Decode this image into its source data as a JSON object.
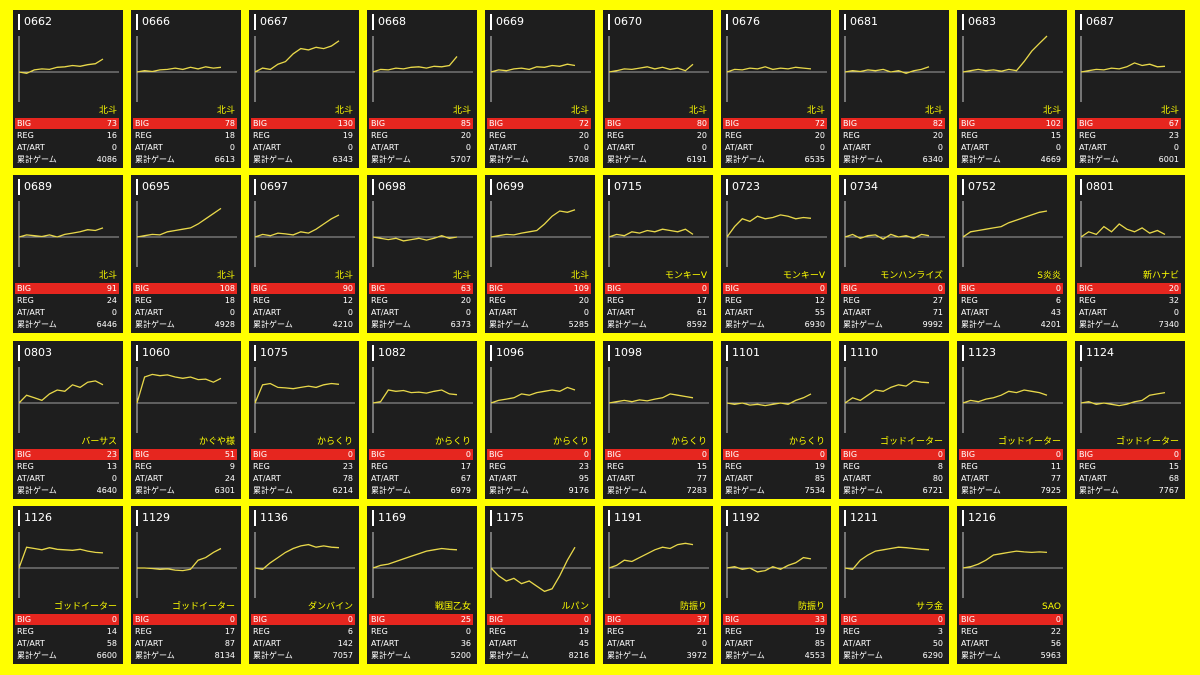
{
  "labels": {
    "big": "BIG",
    "reg": "REG",
    "art": "AT/ART",
    "games": "累計ゲーム"
  },
  "colors": {
    "background": "#ffff00",
    "card": "#1e1e1e",
    "line": "#e8d84a",
    "big_bar": "#e6261f",
    "machine_text": "#ffff00"
  },
  "cards": [
    {
      "num": "0662",
      "machine": "北斗",
      "big": "73",
      "reg": "16",
      "art": "0",
      "games": "4086",
      "trend": [
        0,
        -0.05,
        0.08,
        0.12,
        0.1,
        0.18,
        0.2,
        0.25,
        0.22,
        0.28,
        0.32,
        0.5
      ]
    },
    {
      "num": "0666",
      "machine": "北斗",
      "big": "78",
      "reg": "18",
      "art": "0",
      "games": "6613",
      "trend": [
        0,
        0.05,
        0.02,
        0.08,
        0.1,
        0.15,
        0.1,
        0.18,
        0.12,
        0.2,
        0.15,
        0.18
      ]
    },
    {
      "num": "0667",
      "machine": "北斗",
      "big": "130",
      "reg": "19",
      "art": "0",
      "games": "6343",
      "trend": [
        0,
        0.15,
        0.1,
        0.3,
        0.4,
        0.7,
        0.9,
        0.85,
        0.95,
        0.9,
        1.0,
        1.2
      ]
    },
    {
      "num": "0668",
      "machine": "北斗",
      "big": "85",
      "reg": "20",
      "art": "0",
      "games": "5707",
      "trend": [
        0,
        0.1,
        0.08,
        0.15,
        0.12,
        0.18,
        0.2,
        0.15,
        0.22,
        0.2,
        0.25,
        0.6
      ]
    },
    {
      "num": "0669",
      "machine": "北斗",
      "big": "72",
      "reg": "20",
      "art": "0",
      "games": "5708",
      "trend": [
        0,
        0.08,
        0.05,
        0.12,
        0.15,
        0.1,
        0.2,
        0.18,
        0.25,
        0.22,
        0.3,
        0.25
      ]
    },
    {
      "num": "0670",
      "machine": "北斗",
      "big": "80",
      "reg": "20",
      "art": "0",
      "games": "6191",
      "trend": [
        0,
        0.05,
        0.12,
        0.1,
        0.15,
        0.2,
        0.12,
        0.18,
        0.1,
        0.15,
        0.05,
        0.3
      ]
    },
    {
      "num": "0676",
      "machine": "北斗",
      "big": "72",
      "reg": "20",
      "art": "0",
      "games": "6535",
      "trend": [
        0,
        0.1,
        0.08,
        0.15,
        0.12,
        0.2,
        0.1,
        0.15,
        0.12,
        0.18,
        0.15,
        0.12
      ]
    },
    {
      "num": "0681",
      "machine": "北斗",
      "big": "82",
      "reg": "20",
      "art": "0",
      "games": "6340",
      "trend": [
        0,
        0.05,
        0.02,
        0.08,
        0.05,
        0.1,
        0,
        0.05,
        -0.05,
        0.05,
        0.1,
        0.2
      ]
    },
    {
      "num": "0683",
      "machine": "北斗",
      "big": "102",
      "reg": "15",
      "art": "0",
      "games": "4669",
      "trend": [
        0,
        0.05,
        0.1,
        0.05,
        0.08,
        0.03,
        0.1,
        0.05,
        0.4,
        0.8,
        1.1,
        1.4
      ]
    },
    {
      "num": "0687",
      "machine": "北斗",
      "big": "67",
      "reg": "23",
      "art": "0",
      "games": "6001",
      "trend": [
        0,
        0.05,
        0.1,
        0.08,
        0.15,
        0.12,
        0.2,
        0.35,
        0.25,
        0.3,
        0.2,
        0.22
      ]
    },
    {
      "num": "0689",
      "machine": "北斗",
      "big": "91",
      "reg": "24",
      "art": "0",
      "games": "6446",
      "trend": [
        0,
        0.08,
        0.05,
        0.02,
        0.08,
        0,
        0.1,
        0.15,
        0.2,
        0.28,
        0.25,
        0.35
      ]
    },
    {
      "num": "0695",
      "machine": "北斗",
      "big": "108",
      "reg": "18",
      "art": "0",
      "games": "4928",
      "trend": [
        0,
        0.05,
        0.1,
        0.08,
        0.2,
        0.25,
        0.3,
        0.35,
        0.5,
        0.7,
        0.9,
        1.1
      ]
    },
    {
      "num": "0697",
      "machine": "北斗",
      "big": "90",
      "reg": "12",
      "art": "0",
      "games": "4210",
      "trend": [
        0,
        0.1,
        0.05,
        0.15,
        0.12,
        0.08,
        0.2,
        0.15,
        0.3,
        0.5,
        0.7,
        0.85
      ]
    },
    {
      "num": "0698",
      "machine": "北斗",
      "big": "63",
      "reg": "20",
      "art": "0",
      "games": "6373",
      "trend": [
        0,
        -0.05,
        -0.1,
        -0.05,
        -0.15,
        -0.1,
        -0.05,
        -0.12,
        -0.05,
        0.05,
        -0.05,
        0
      ]
    },
    {
      "num": "0699",
      "machine": "北斗",
      "big": "109",
      "reg": "20",
      "art": "0",
      "games": "5285",
      "trend": [
        0,
        0.05,
        0.1,
        0.08,
        0.15,
        0.2,
        0.25,
        0.5,
        0.8,
        1.0,
        0.95,
        1.05
      ]
    },
    {
      "num": "0715",
      "machine": "モンキーV",
      "big": "0",
      "reg": "17",
      "art": "61",
      "games": "8592",
      "trend": [
        0,
        0.1,
        0.05,
        0.2,
        0.15,
        0.25,
        0.2,
        0.3,
        0.25,
        0.2,
        0.3,
        0.1
      ]
    },
    {
      "num": "0723",
      "machine": "モンキーV",
      "big": "0",
      "reg": "12",
      "art": "55",
      "games": "6930",
      "trend": [
        0,
        0.4,
        0.7,
        0.6,
        0.8,
        0.7,
        0.75,
        0.85,
        0.8,
        0.7,
        0.75,
        0.72
      ]
    },
    {
      "num": "0734",
      "machine": "モンハンライズ",
      "big": "0",
      "reg": "27",
      "art": "71",
      "games": "9992",
      "trend": [
        0,
        0.1,
        -0.05,
        0.05,
        0.08,
        -0.08,
        0.1,
        0,
        0.05,
        -0.05,
        0.1,
        0.05
      ]
    },
    {
      "num": "0752",
      "machine": "S炎炎",
      "big": "0",
      "reg": "6",
      "art": "43",
      "games": "4201",
      "trend": [
        0,
        0.2,
        0.25,
        0.3,
        0.35,
        0.4,
        0.55,
        0.65,
        0.75,
        0.85,
        0.95,
        1.0
      ]
    },
    {
      "num": "0801",
      "machine": "新ハナビ",
      "big": "20",
      "reg": "32",
      "art": "0",
      "games": "7340",
      "trend": [
        0,
        0.2,
        0.1,
        0.4,
        0.2,
        0.5,
        0.3,
        0.2,
        0.35,
        0.15,
        0.25,
        0.1
      ]
    },
    {
      "num": "0803",
      "machine": "バーサス",
      "big": "23",
      "reg": "13",
      "art": "0",
      "games": "4640",
      "trend": [
        0,
        0.3,
        0.2,
        0.1,
        0.35,
        0.5,
        0.45,
        0.7,
        0.6,
        0.8,
        0.85,
        0.7
      ]
    },
    {
      "num": "1060",
      "machine": "かぐや様",
      "big": "51",
      "reg": "9",
      "art": "24",
      "games": "6301",
      "trend": [
        0,
        1.0,
        1.1,
        1.05,
        1.08,
        1.0,
        0.95,
        1.0,
        0.9,
        0.92,
        0.8,
        0.95
      ]
    },
    {
      "num": "1075",
      "machine": "からくり",
      "big": "0",
      "reg": "23",
      "art": "78",
      "games": "6214",
      "trend": [
        0,
        0.7,
        0.75,
        0.6,
        0.58,
        0.55,
        0.6,
        0.65,
        0.6,
        0.7,
        0.75,
        0.72
      ]
    },
    {
      "num": "1082",
      "machine": "からくり",
      "big": "0",
      "reg": "17",
      "art": "67",
      "games": "6979",
      "trend": [
        0,
        0.05,
        0.5,
        0.45,
        0.48,
        0.4,
        0.42,
        0.38,
        0.45,
        0.5,
        0.35,
        0.32
      ]
    },
    {
      "num": "1096",
      "machine": "からくり",
      "big": "0",
      "reg": "23",
      "art": "95",
      "games": "9176",
      "trend": [
        0,
        0.1,
        0.15,
        0.2,
        0.35,
        0.3,
        0.4,
        0.45,
        0.5,
        0.45,
        0.6,
        0.5
      ]
    },
    {
      "num": "1098",
      "machine": "からくり",
      "big": "0",
      "reg": "15",
      "art": "77",
      "games": "7283",
      "trend": [
        0,
        0.05,
        0.1,
        0.05,
        0.12,
        0.08,
        0.15,
        0.2,
        0.35,
        0.3,
        0.25,
        0.2
      ]
    },
    {
      "num": "1101",
      "machine": "からくり",
      "big": "0",
      "reg": "19",
      "art": "85",
      "games": "7534",
      "trend": [
        0,
        -0.05,
        0,
        -0.08,
        -0.05,
        -0.1,
        -0.05,
        0,
        -0.05,
        0.1,
        0.2,
        0.35
      ]
    },
    {
      "num": "1110",
      "machine": "ゴッドイーター",
      "big": "0",
      "reg": "8",
      "art": "80",
      "games": "6721",
      "trend": [
        0,
        0.2,
        0.1,
        0.3,
        0.5,
        0.45,
        0.6,
        0.7,
        0.65,
        0.85,
        0.8,
        0.78
      ]
    },
    {
      "num": "1123",
      "machine": "ゴッドイーター",
      "big": "0",
      "reg": "11",
      "art": "77",
      "games": "7925",
      "trend": [
        0,
        0.1,
        0.05,
        0.15,
        0.2,
        0.3,
        0.45,
        0.4,
        0.5,
        0.45,
        0.4,
        0.3
      ]
    },
    {
      "num": "1124",
      "machine": "ゴッドイーター",
      "big": "0",
      "reg": "15",
      "art": "68",
      "games": "7767",
      "trend": [
        0,
        0.05,
        -0.05,
        0,
        -0.05,
        -0.1,
        -0.05,
        0.05,
        0.1,
        0.3,
        0.35,
        0.4
      ]
    },
    {
      "num": "1126",
      "machine": "ゴッドイーター",
      "big": "0",
      "reg": "14",
      "art": "58",
      "games": "6600",
      "trend": [
        0,
        0.8,
        0.75,
        0.7,
        0.78,
        0.72,
        0.7,
        0.68,
        0.72,
        0.65,
        0.6,
        0.58
      ]
    },
    {
      "num": "1129",
      "machine": "ゴッドイーター",
      "big": "0",
      "reg": "17",
      "art": "87",
      "games": "8134",
      "trend": [
        0,
        0,
        -0.02,
        -0.05,
        -0.03,
        -0.08,
        -0.1,
        -0.05,
        0.3,
        0.4,
        0.6,
        0.75
      ]
    },
    {
      "num": "1136",
      "machine": "ダンバイン",
      "big": "0",
      "reg": "6",
      "art": "142",
      "games": "7057",
      "trend": [
        0,
        -0.05,
        0.2,
        0.4,
        0.6,
        0.75,
        0.85,
        0.9,
        0.8,
        0.85,
        0.8,
        0.78
      ]
    },
    {
      "num": "1169",
      "machine": "戦国乙女",
      "big": "25",
      "reg": "0",
      "art": "36",
      "games": "5200",
      "trend": [
        0,
        0.1,
        0.15,
        0.25,
        0.35,
        0.45,
        0.55,
        0.65,
        0.7,
        0.75,
        0.72,
        0.7
      ]
    },
    {
      "num": "1175",
      "machine": "ルパン",
      "big": "0",
      "reg": "19",
      "art": "45",
      "games": "8216",
      "trend": [
        0,
        -0.3,
        -0.5,
        -0.4,
        -0.6,
        -0.5,
        -0.7,
        -0.9,
        -0.8,
        -0.3,
        0.3,
        0.8
      ]
    },
    {
      "num": "1191",
      "machine": "防振り",
      "big": "37",
      "reg": "21",
      "art": "0",
      "games": "3972",
      "trend": [
        0,
        0.1,
        0.3,
        0.25,
        0.4,
        0.55,
        0.7,
        0.8,
        0.75,
        0.9,
        0.95,
        0.9
      ]
    },
    {
      "num": "1192",
      "machine": "防振り",
      "big": "33",
      "reg": "19",
      "art": "85",
      "games": "4553",
      "trend": [
        0,
        0.05,
        -0.05,
        0,
        -0.15,
        -0.1,
        0.05,
        -0.05,
        0.1,
        0.2,
        0.4,
        0.35
      ]
    },
    {
      "num": "1211",
      "machine": "サラ金",
      "big": "0",
      "reg": "3",
      "art": "50",
      "games": "6290",
      "trend": [
        0,
        -0.05,
        0.3,
        0.5,
        0.65,
        0.7,
        0.75,
        0.8,
        0.78,
        0.75,
        0.72,
        0.7
      ]
    },
    {
      "num": "1216",
      "machine": "SAO",
      "big": "0",
      "reg": "22",
      "art": "56",
      "games": "5963",
      "trend": [
        0,
        0.05,
        0.15,
        0.3,
        0.5,
        0.55,
        0.6,
        0.65,
        0.62,
        0.6,
        0.62,
        0.6
      ]
    }
  ]
}
